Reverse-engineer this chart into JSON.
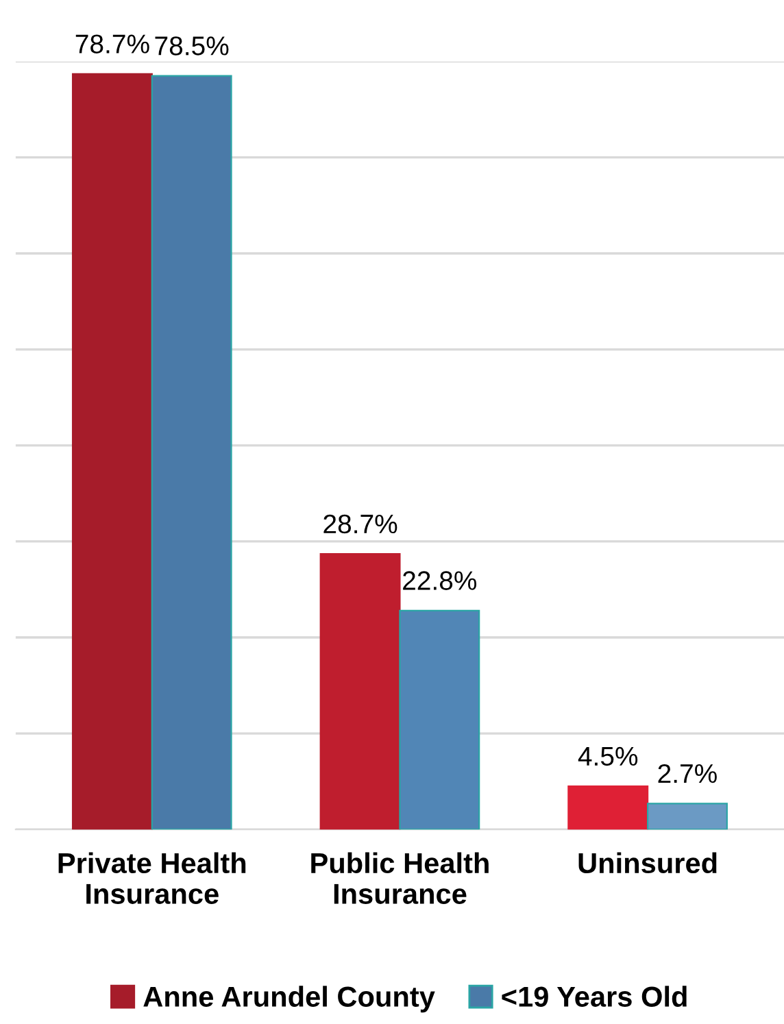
{
  "chart_data": {
    "type": "bar",
    "categories": [
      "Private Health Insurance",
      "Public Health Insurance",
      "Uninsured"
    ],
    "series": [
      {
        "name": "Anne Arundel County",
        "color": "#a61c2a",
        "colors": [
          "#a61c2a",
          "#bf1e2e",
          "#df2035"
        ],
        "values": [
          78.7,
          28.7,
          4.5
        ],
        "value_labels": [
          "78.7%",
          "28.7%",
          "4.5%"
        ]
      },
      {
        "name": "<19 Years Old",
        "color": "#4a7aa8",
        "colors": [
          "#4a7aa8",
          "#5186b6",
          "#6b9ac4"
        ],
        "values": [
          78.5,
          22.8,
          2.7
        ],
        "value_labels": [
          "78.5%",
          "22.8%",
          "2.7%"
        ]
      }
    ],
    "ylim": [
      0,
      80
    ],
    "yticks": [
      {
        "value": 0,
        "label": null
      },
      {
        "value": 10,
        "label": null
      },
      {
        "value": 20,
        "label": null
      },
      {
        "value": 30,
        "label": null
      },
      {
        "value": 40,
        "label": null
      },
      {
        "value": 50,
        "label": null
      },
      {
        "value": 60,
        "label": null
      },
      {
        "value": 70,
        "label": null
      },
      {
        "value": 80,
        "label": null
      }
    ],
    "tick_labels": "x",
    "grid": "y",
    "legend": "bottom"
  }
}
